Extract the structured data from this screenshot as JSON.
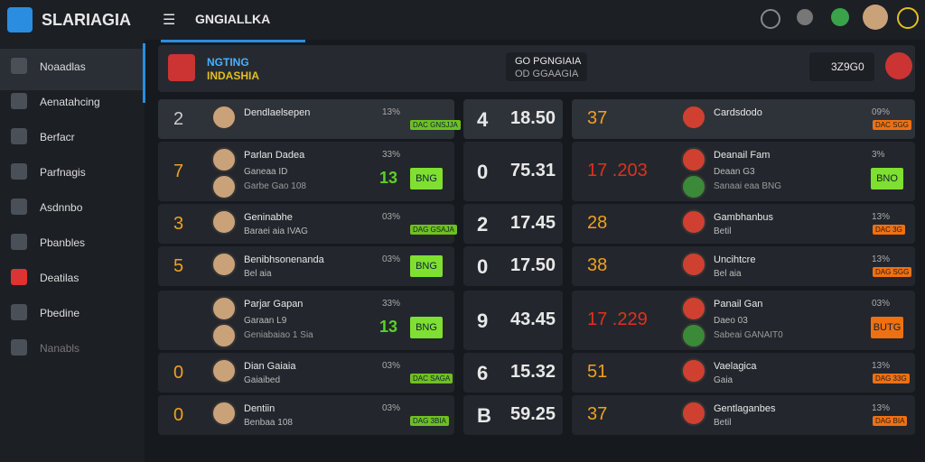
{
  "header": {
    "logo": "SLARIAGIA",
    "title": "GNGIALLKA"
  },
  "sidebar": [
    "Noaadlas",
    "Aenatahcing",
    "Berfacr",
    "Parfnagis",
    "Asdnnbo",
    "Pbanbles",
    "Deatilas",
    "Pbedine",
    "Nanabls"
  ],
  "match": {
    "team1": "NGTING",
    "team2": "INDASHIA",
    "info1": "GO PGNGIAIA",
    "info2": "OD GGAAGIA",
    "score": "3Z9G0"
  },
  "rows": [
    {
      "left": {
        "rank": "2",
        "name": "Dendlaelsepen",
        "pct": "13%",
        "badge": "DAC GNSJJA"
      },
      "mid": {
        "num": "4",
        "score": "18.50"
      },
      "right": {
        "num": "37",
        "name": "Cardsdodo",
        "pct": "09%",
        "badge": "DAC SGG"
      },
      "tall": false,
      "head": true
    },
    {
      "left": {
        "rank": "7",
        "name": "Parlan Dadea",
        "sub": "Ganeaa ID",
        "sub2": "Garbe Gao 108",
        "pct": "33%",
        "num": "13",
        "badge": "BNG"
      },
      "mid": {
        "num": "0",
        "score": "75.31"
      },
      "right": {
        "num": "17 .203",
        "name": "Deanail Fam",
        "sub": "Deaan G3",
        "sub2": "Sanaai eaa BNG",
        "pct": "3%",
        "badge": "BNO"
      },
      "tall": true,
      "big": true
    },
    {
      "left": {
        "rank": "3",
        "name": "Geninabhe",
        "sub": "Baraei aia IVAG",
        "pct": "03%",
        "badge": "DAG GSAJA"
      },
      "mid": {
        "num": "2",
        "score": "17.45"
      },
      "right": {
        "num": "28",
        "name": "Gambhanbus",
        "sub": "Betil",
        "pct": "13%",
        "badge": "DAC 3G"
      },
      "tall": false
    },
    {
      "left": {
        "rank": "5",
        "name": "Benibhsonenanda",
        "sub": "Bel aia",
        "pct": "03%",
        "badge": "BNG"
      },
      "mid": {
        "num": "0",
        "score": "17.50"
      },
      "right": {
        "num": "38",
        "name": "Uncihtcre",
        "sub": "Bel aia",
        "pct": "13%",
        "badge": "DAG SGG"
      },
      "tall": false,
      "bigbadge": true
    },
    {
      "left": {
        "rank": "",
        "name": "Parjar Gapan",
        "sub": "Garaan L9",
        "sub2": "Geniabaiao 1 Sia",
        "pct": "33%",
        "num": "13",
        "badge": "BNG"
      },
      "mid": {
        "num": "9",
        "score": "43.45"
      },
      "right": {
        "num": "17 .229",
        "name": "Panail Gan",
        "sub": "Daeo 03",
        "sub2": "Sabeai GANAIT0",
        "pct": "03%",
        "badge": "BUTG"
      },
      "tall": true,
      "big": true,
      "orange": true
    },
    {
      "left": {
        "rank": "0",
        "name": "Dian Gaiaia",
        "sub": "Gaiaibed",
        "pct": "03%",
        "badge": "DAC SAGA"
      },
      "mid": {
        "num": "6",
        "score": "15.32"
      },
      "right": {
        "num": "51",
        "name": "Vaelagica",
        "sub": "Gaia",
        "pct": "13%",
        "badge": "DAG 33G"
      },
      "tall": false
    },
    {
      "left": {
        "rank": "0",
        "name": "Dentiin",
        "sub": "Benbaa 108",
        "pct": "03%",
        "badge": "DAG 3BIA"
      },
      "mid": {
        "num": "B",
        "score": "59.25"
      },
      "right": {
        "num": "37",
        "name": "Gentlaganbes",
        "sub": "Betil",
        "pct": "13%",
        "badge": "DAG BIA"
      },
      "tall": false
    }
  ]
}
